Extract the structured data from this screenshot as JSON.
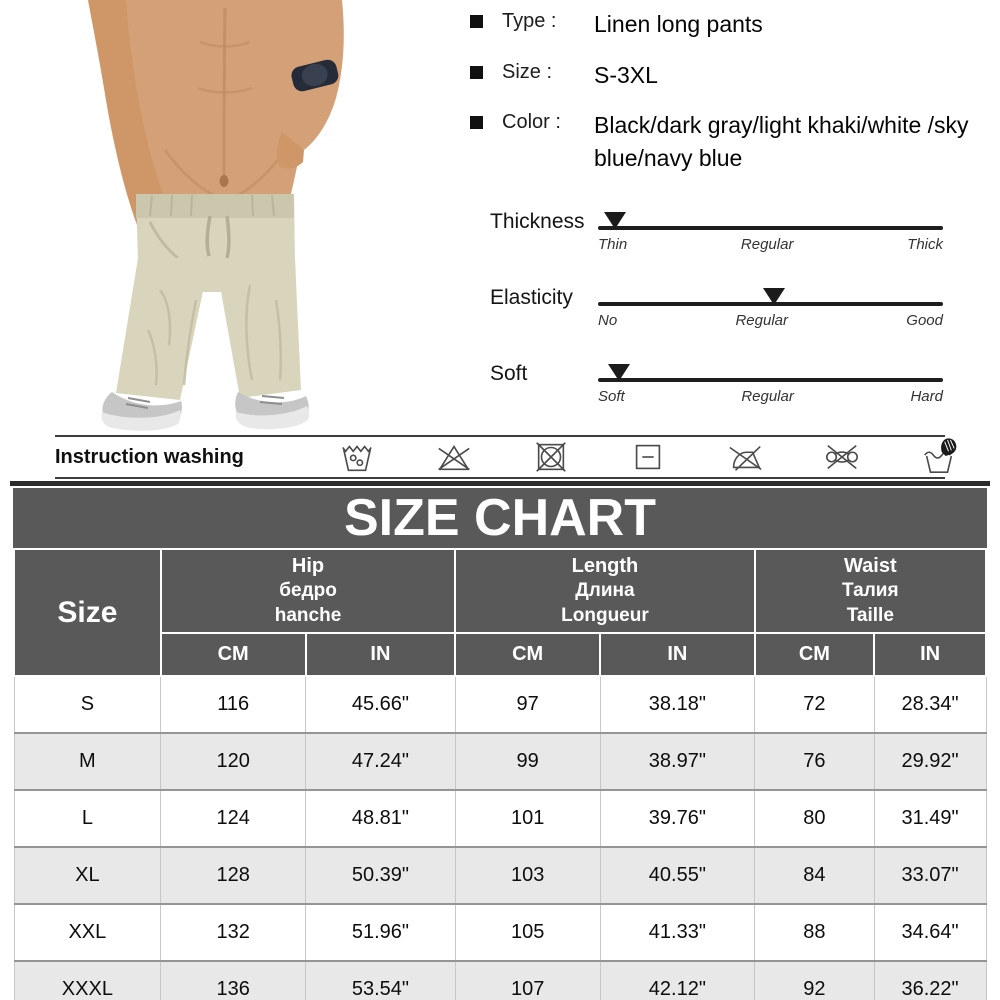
{
  "photo": {
    "alt": "Man wearing light khaki linen long pants with drawstring waist, hand in pocket, gray sneakers, dark wristwatch"
  },
  "details": {
    "items": [
      {
        "label": "Type :",
        "value": "Linen long pants"
      },
      {
        "label": "Size :",
        "value": "S-3XL"
      },
      {
        "label": "Color :",
        "value": "Black/dark gray/light khaki/white /sky blue/navy blue"
      }
    ]
  },
  "sliders": {
    "items": [
      {
        "name": "Thickness",
        "marker_pct": 5,
        "left": "Thin",
        "mid": "Regular",
        "right": "Thick"
      },
      {
        "name": "Elasticity",
        "marker_pct": 51,
        "left": "No",
        "mid": "Regular",
        "right": "Good"
      },
      {
        "name": "Soft",
        "marker_pct": 6,
        "left": "Soft",
        "mid": "Regular",
        "right": "Hard"
      }
    ]
  },
  "washing": {
    "title": "Instruction washing",
    "icons": [
      "machine-wash",
      "do-not-bleach",
      "do-not-tumble-dry",
      "dry-flat",
      "do-not-iron",
      "do-not-wring",
      "hand-wash"
    ]
  },
  "size_chart": {
    "title": "SIZE CHART",
    "size_header": "Size",
    "groups": [
      {
        "en": "Hip",
        "ru": "бедро",
        "fr": "hanche"
      },
      {
        "en": "Length",
        "ru": "Длина",
        "fr": "Longueur"
      },
      {
        "en": "Waist",
        "ru": "Талия",
        "fr": "Taille"
      }
    ],
    "unit_headers": [
      "CM",
      "IN",
      "CM",
      "IN",
      "CM",
      "IN"
    ],
    "rows": [
      {
        "size": "S",
        "cells": [
          "116",
          "45.66\"",
          "97",
          "38.18\"",
          "72",
          "28.34\""
        ]
      },
      {
        "size": "M",
        "cells": [
          "120",
          "47.24\"",
          "99",
          "38.97\"",
          "76",
          "29.92\""
        ]
      },
      {
        "size": "L",
        "cells": [
          "124",
          "48.81\"",
          "101",
          "39.76\"",
          "80",
          "31.49\""
        ]
      },
      {
        "size": "XL",
        "cells": [
          "128",
          "50.39\"",
          "103",
          "40.55\"",
          "84",
          "33.07\""
        ]
      },
      {
        "size": "XXL",
        "cells": [
          "132",
          "51.96\"",
          "105",
          "41.33\"",
          "88",
          "34.64\""
        ]
      },
      {
        "size": "XXXL",
        "cells": [
          "136",
          "53.54\"",
          "107",
          "42.12\"",
          "92",
          "36.22\""
        ]
      }
    ]
  },
  "colors": {
    "header_gray": "#595959",
    "row_alt": "#e8e8e8",
    "rule_dark": "#2c2c2c"
  }
}
